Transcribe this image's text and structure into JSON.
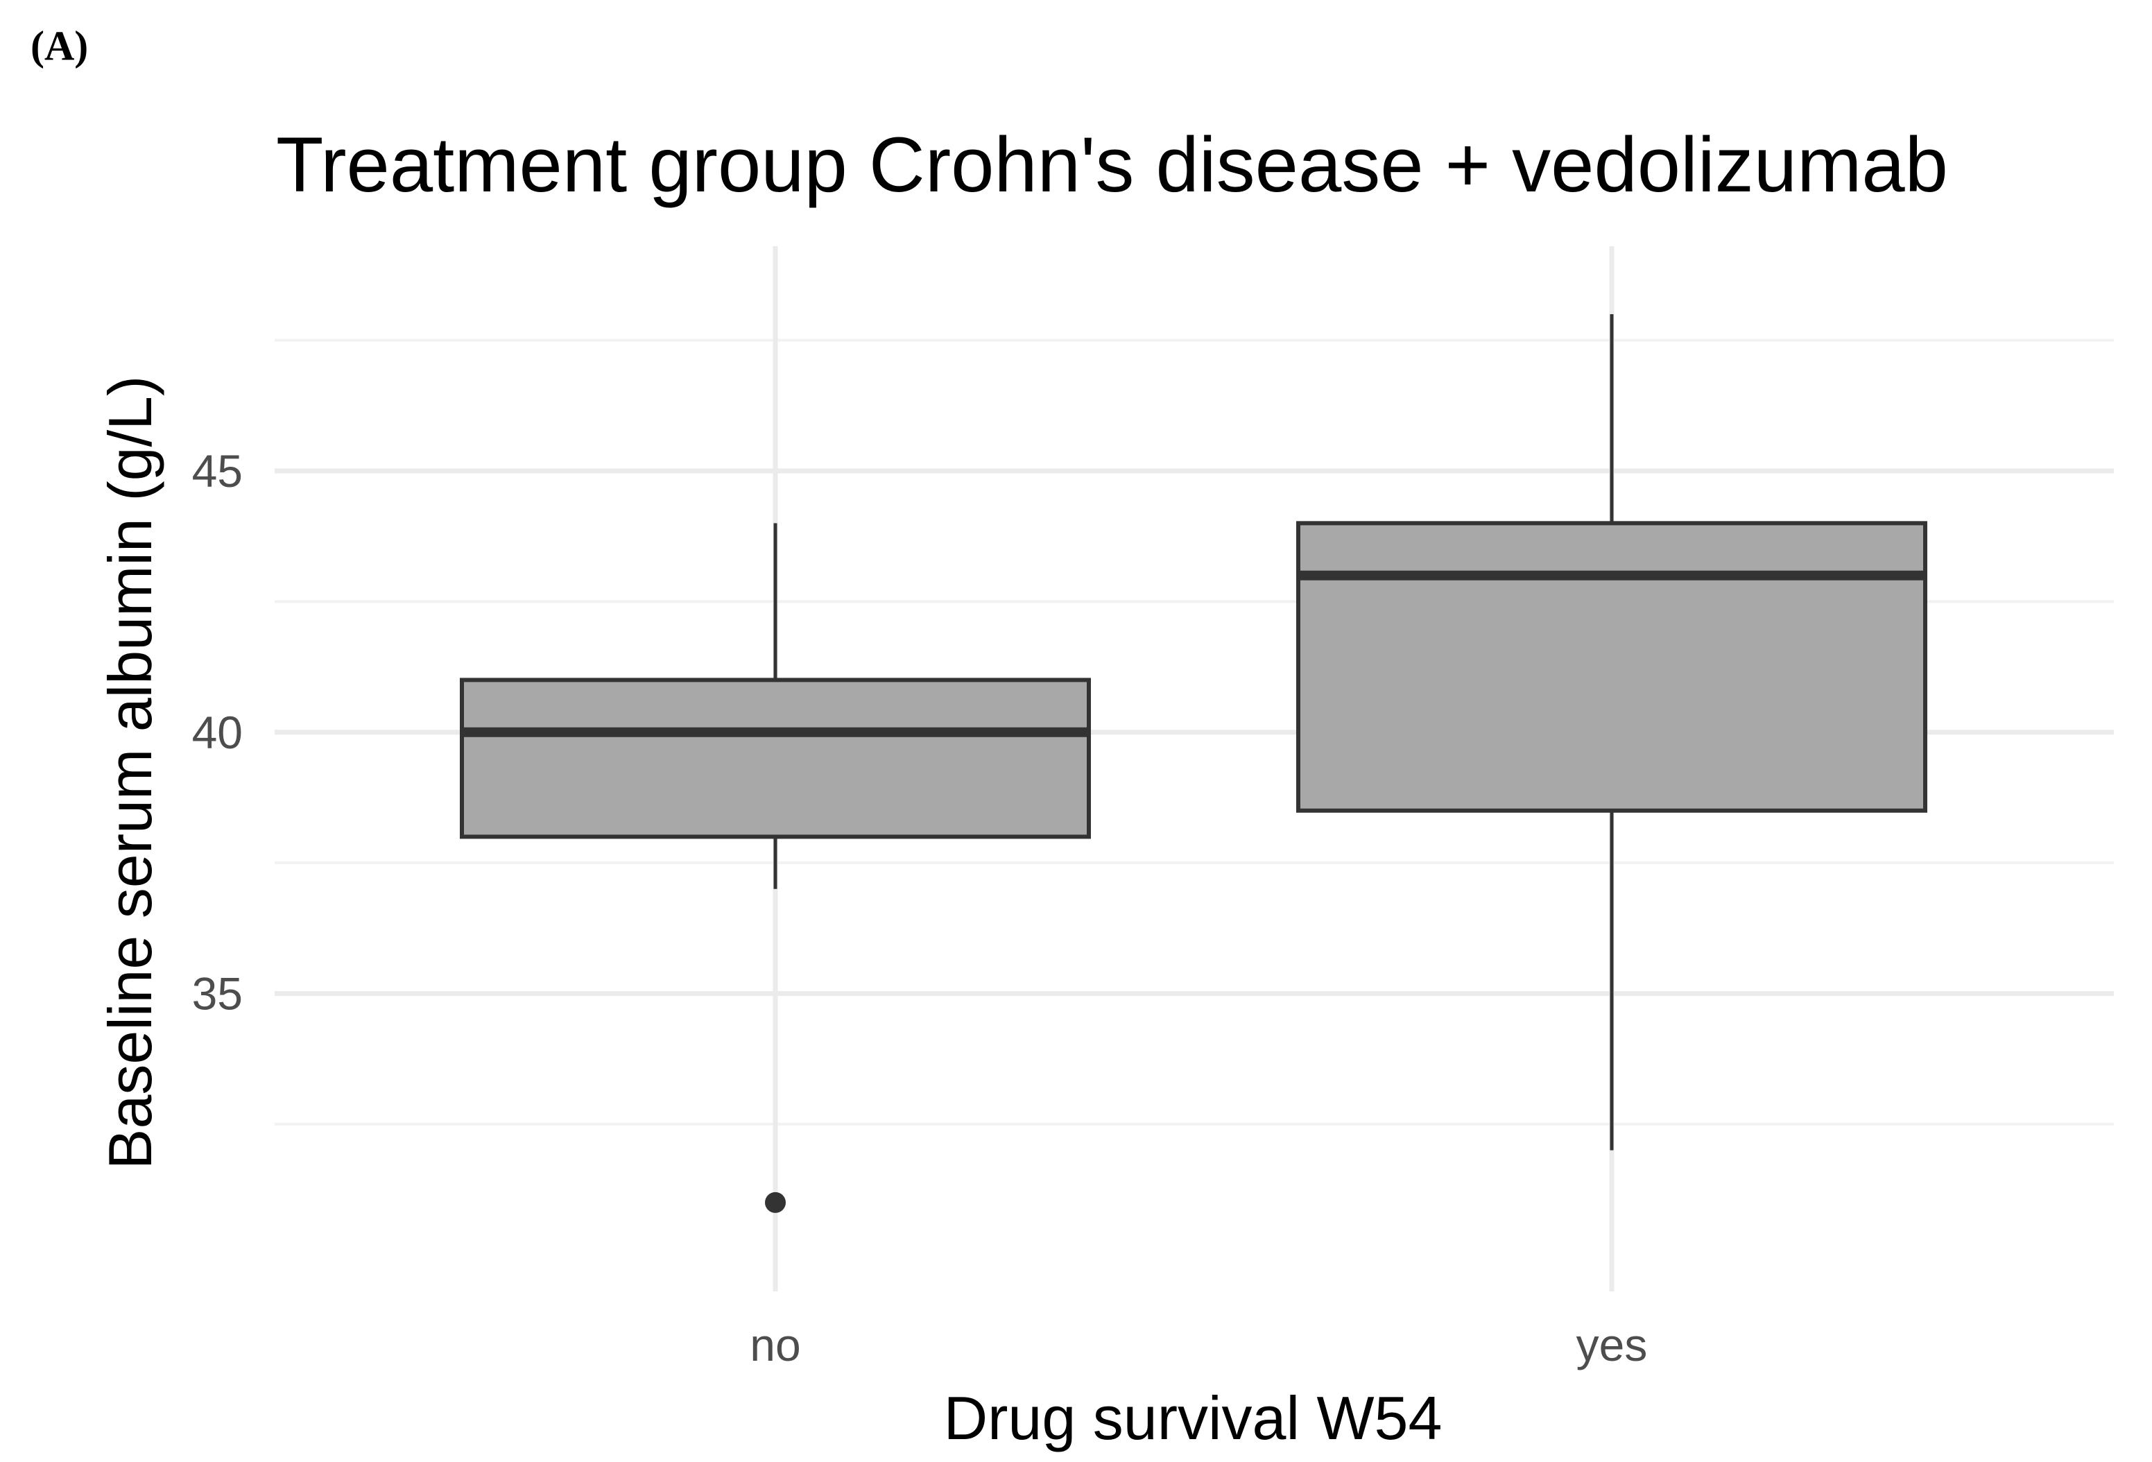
{
  "panel_label": "(A)",
  "chart_data": {
    "type": "boxplot",
    "title": "Treatment group Crohn's disease + vedolizumab",
    "xlabel": "Drug survival W54",
    "ylabel": "Baseline serum albumin (g/L)",
    "categories": [
      "no",
      "yes"
    ],
    "ylim": [
      29.3,
      49.3
    ],
    "yticks": [
      35,
      40,
      45
    ],
    "minor_yticks": [
      32.5,
      37.5,
      42.5,
      47.5
    ],
    "grid": true,
    "boxes": [
      {
        "category": "no",
        "whisker_low": 37,
        "q1": 38,
        "median": 40,
        "q3": 41,
        "whisker_high": 44,
        "outliers": [
          31
        ]
      },
      {
        "category": "yes",
        "whisker_low": 32,
        "q1": 38.5,
        "median": 43,
        "q3": 44,
        "whisker_high": 48,
        "outliers": []
      }
    ],
    "colors": {
      "box_fill": "#a8a8a8",
      "box_stroke": "#333333",
      "grid_major": "#ebebeb",
      "grid_minor": "#f2f2f2"
    }
  }
}
